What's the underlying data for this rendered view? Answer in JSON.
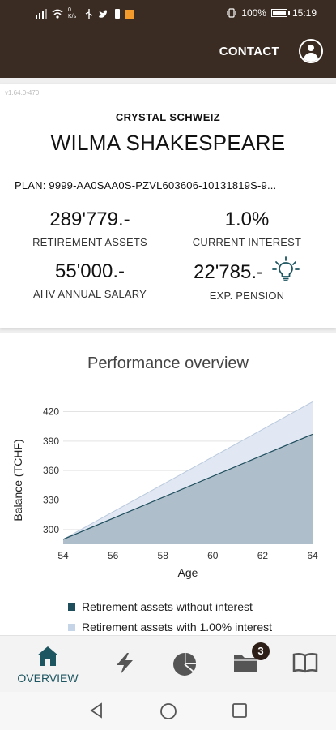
{
  "status_bar": {
    "left_icons": [
      "signal-icon",
      "wifi-icon",
      "data-speed-icon",
      "usb-icon",
      "twitter-icon",
      "notification-icon",
      "app-icon"
    ],
    "speed": "0 K/s",
    "battery_percent": "100%",
    "time": "15:19"
  },
  "header": {
    "contact_label": "CONTACT"
  },
  "version": "v1.64.0-470",
  "profile": {
    "company": "CRYSTAL SCHWEIZ",
    "name": "WILMA SHAKESPEARE",
    "plan": "PLAN: 9999-AA0SAA0S-PZVL603606-10131819S-9..."
  },
  "stats": {
    "retirement_assets": {
      "value": "289'779.-",
      "label": "RETIREMENT ASSETS"
    },
    "current_interest": {
      "value": "1.0%",
      "label": "CURRENT INTEREST"
    },
    "ahv_salary": {
      "value": "55'000.-",
      "label": "AHV ANNUAL SALARY"
    },
    "exp_pension": {
      "value": "22'785.-",
      "label": "EXP. PENSION"
    }
  },
  "chart_data": {
    "type": "area",
    "title": "Performance overview",
    "xlabel": "Age",
    "ylabel": "Balance (TCHF)",
    "x": [
      54,
      64
    ],
    "xticks": [
      54,
      56,
      58,
      60,
      62,
      64
    ],
    "yticks": [
      300,
      330,
      360,
      390,
      420
    ],
    "xlim": [
      54,
      64
    ],
    "ylim": [
      285,
      432
    ],
    "grid": true,
    "legend_position": "bottom",
    "series": [
      {
        "name": "Retirement assets without interest",
        "values": [
          290,
          397
        ],
        "color": "#1e4d5c"
      },
      {
        "name": "Retirement assets with 1.00% interest",
        "values": [
          290,
          430
        ],
        "color": "#c5d4e6"
      }
    ]
  },
  "bottom_nav": {
    "overview_label": "OVERVIEW",
    "documents_badge": "3"
  },
  "colors": {
    "header_bg": "#3a2c22",
    "accent": "#1d5560",
    "area_dark": "#aebfcb",
    "area_light": "#e1e8f3"
  }
}
